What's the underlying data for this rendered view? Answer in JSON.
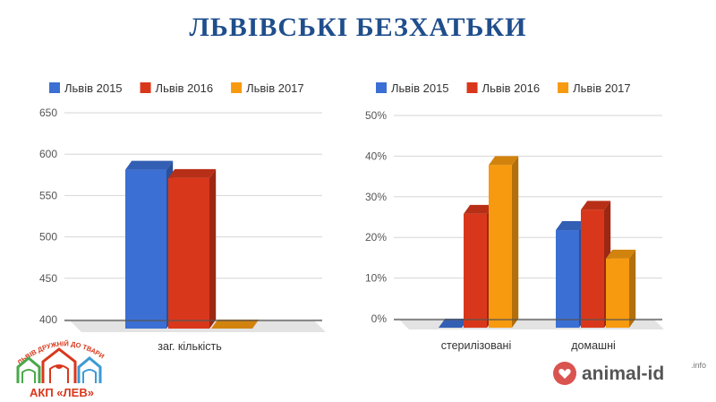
{
  "page": {
    "title": "ЛЬВІВСЬКІ БЕЗХАТЬКИ"
  },
  "colors": {
    "s2015": "#3b6fd4",
    "s2016": "#d9371b",
    "s2017": "#f79a0f",
    "title": "#1f4e8c",
    "grid": "#d6d6d6",
    "axis_text": "#555555"
  },
  "chart_data": [
    {
      "type": "bar",
      "title": "",
      "categories": [
        "заг. кількість"
      ],
      "series": [
        {
          "name": "Львів 2015",
          "values": [
            592
          ]
        },
        {
          "name": "Львів 2016",
          "values": [
            582
          ]
        },
        {
          "name": "Львів 2017",
          "values": [
            400
          ]
        }
      ],
      "ylim": [
        400,
        650
      ],
      "yticks": [
        "650",
        "600",
        "550",
        "500",
        "450",
        "400"
      ],
      "ytick_values": [
        650,
        600,
        550,
        500,
        450,
        400
      ],
      "grid": true,
      "legend": "top"
    },
    {
      "type": "bar",
      "title": "",
      "categories": [
        "стерилізовані",
        "домашні"
      ],
      "series": [
        {
          "name": "Львів 2015",
          "values": [
            0,
            24
          ]
        },
        {
          "name": "Львів 2016",
          "values": [
            28,
            29
          ]
        },
        {
          "name": "Львів 2017",
          "values": [
            40,
            17
          ]
        }
      ],
      "ylim": [
        0,
        50
      ],
      "yticks": [
        "50%",
        "40%",
        "30%",
        "20%",
        "10%",
        "0%"
      ],
      "ytick_values": [
        50,
        40,
        30,
        20,
        10,
        0
      ],
      "grid": true,
      "legend": "top"
    }
  ],
  "logos": {
    "left": {
      "arc_text": "ЛЬВІВ ДРУЖНІЙ ДО ТВАРИН",
      "name": "АКП «ЛЕВ»"
    },
    "right": {
      "name": "animal-id",
      "suffix": ".info"
    }
  }
}
